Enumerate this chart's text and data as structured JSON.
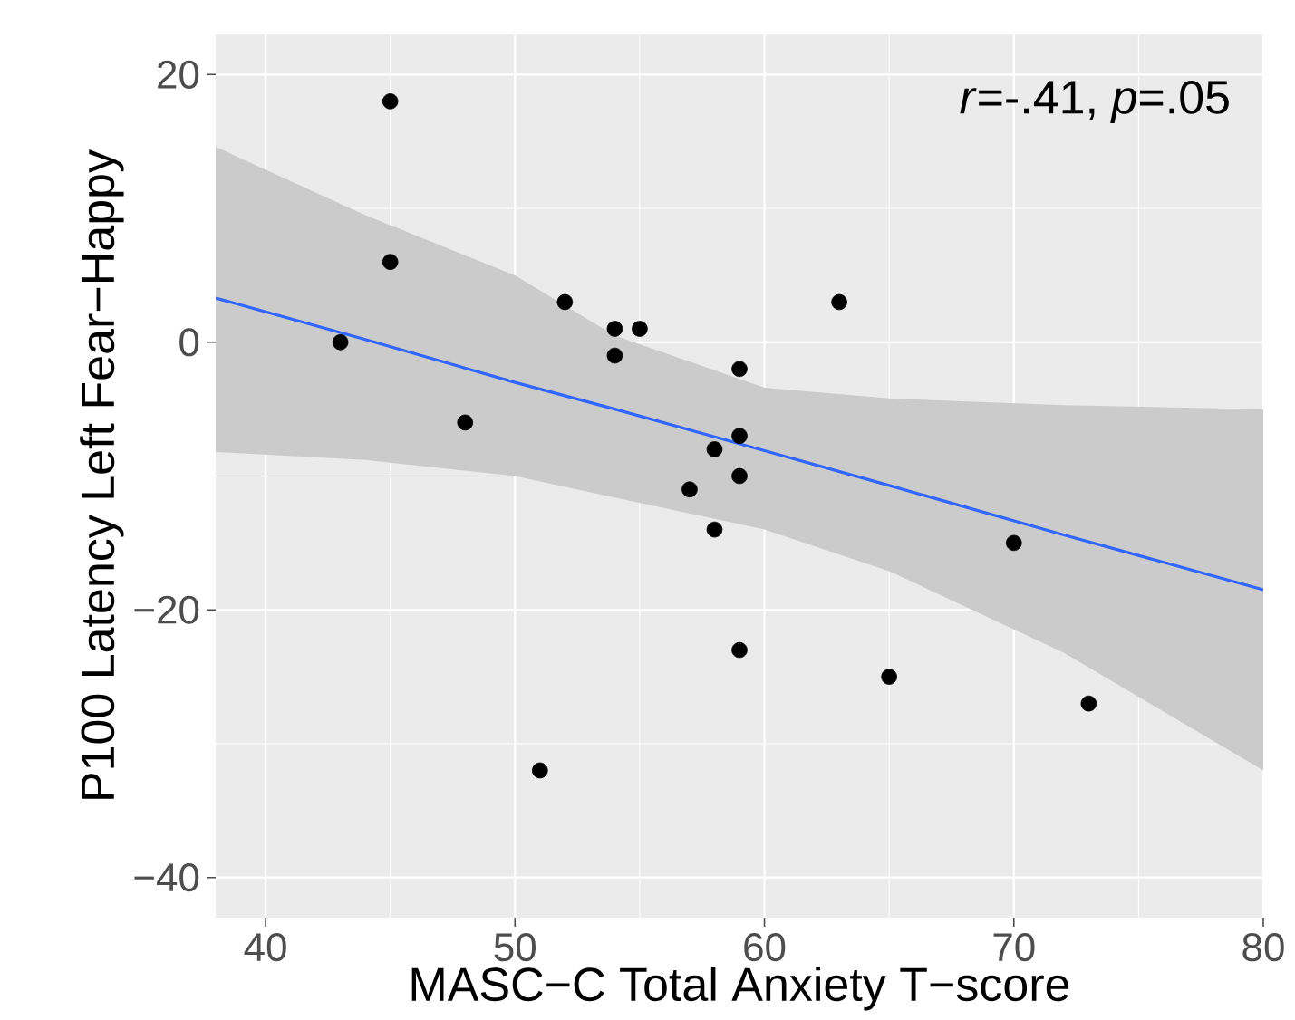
{
  "chart_data": {
    "type": "scatter",
    "xlabel": "MASC−C Total Anxiety T−score",
    "ylabel": "P100 Latency Left Fear−Happy",
    "annotations": [
      "*r*=-.41, *p*=.05"
    ],
    "xlim": [
      38,
      80
    ],
    "ylim": [
      -43,
      23
    ],
    "xticks": [
      40,
      50,
      60,
      70,
      80
    ],
    "yticks": [
      {
        "value": -40,
        "label": "−40"
      },
      {
        "value": -20,
        "label": "−20"
      },
      0,
      20
    ],
    "grid": true,
    "series": [
      {
        "marker": "circle",
        "color": "#000000",
        "x": [
          45,
          45,
          43,
          48,
          52,
          54,
          55,
          54,
          59,
          63,
          59,
          58,
          59,
          57,
          58,
          70,
          59,
          65,
          73,
          51
        ],
        "values": [
          18,
          6,
          0,
          -6,
          3,
          1,
          1,
          -1,
          -2,
          3,
          -7,
          -8,
          -10,
          -11,
          -14,
          -15,
          -23,
          -25,
          -27,
          -32
        ]
      },
      {
        "type": "line",
        "color": "#3366ff",
        "x": [
          38,
          44,
          50,
          54,
          60,
          65,
          72,
          80
        ],
        "values": [
          3.3,
          0.2,
          -3.0,
          -5.0,
          -8.1,
          -10.7,
          -14.4,
          -18.5
        ],
        "lower": [
          -8.2,
          -8.8,
          -10.0,
          -11.6,
          -14.0,
          -17.1,
          -23.2,
          -32.0
        ],
        "upper": [
          14.6,
          9.5,
          5.0,
          0.5,
          -3.4,
          -4.2,
          -4.7,
          -5.0
        ]
      }
    ]
  }
}
